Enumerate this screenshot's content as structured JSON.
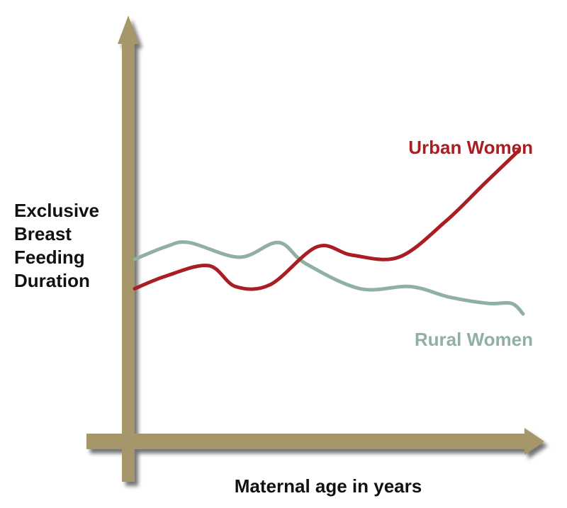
{
  "chart_data": {
    "type": "line",
    "title": "",
    "ylabel_lines": [
      "Exclusive",
      "Breast",
      "Feeding",
      "Duration"
    ],
    "xlabel": "Maternal age in years",
    "x_ticks": [],
    "y_ticks": [],
    "grid": false,
    "legend": "none (series labeled inline)",
    "xlim": [
      0,
      10
    ],
    "ylim": [
      0,
      10
    ],
    "axis_color": "#a5976a",
    "series": [
      {
        "name": "Urban Women",
        "color": "#a81e22",
        "x": [
          0.0,
          0.8,
          1.9,
          2.6,
          3.5,
          4.7,
          5.6,
          6.8,
          8.0,
          9.0,
          9.9
        ],
        "y": [
          4.3,
          4.6,
          4.85,
          4.35,
          4.4,
          5.3,
          5.1,
          5.05,
          5.9,
          6.8,
          7.6
        ]
      },
      {
        "name": "Rural Women",
        "color": "#8fb0a3",
        "x": [
          0.0,
          0.8,
          1.4,
          2.7,
          3.7,
          4.4,
          5.8,
          7.1,
          8.1,
          9.1,
          9.7,
          10.0
        ],
        "y": [
          5.0,
          5.3,
          5.4,
          5.05,
          5.4,
          4.9,
          4.3,
          4.35,
          4.1,
          3.95,
          3.95,
          3.7
        ]
      }
    ]
  }
}
